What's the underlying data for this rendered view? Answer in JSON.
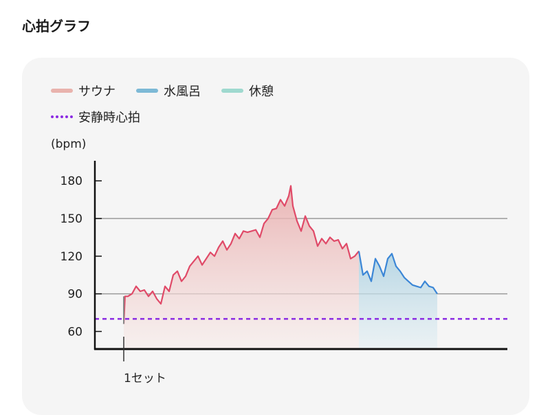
{
  "title": "心拍グラフ",
  "legend": {
    "sauna": "サウナ",
    "cold_bath": "水風呂",
    "rest": "休憩",
    "resting_hr": "安静時心拍"
  },
  "colors": {
    "sauna_line": "#e04a68",
    "sauna_fill": "#e8a9a9",
    "cold_line": "#3b86d6",
    "cold_fill": "#a9cfe0",
    "rest_swatch": "#9fd9cf",
    "sauna_swatch": "#e9b3ad",
    "cold_swatch": "#7db9d6",
    "resting_line": "#8a2be2",
    "grid": "#9a9a9a",
    "axis": "#111111"
  },
  "chart_data": {
    "type": "area",
    "ylabel": "(bpm)",
    "y_ticks": [
      60,
      90,
      120,
      150,
      180
    ],
    "ylim": [
      46,
      196
    ],
    "xlim": [
      0,
      100
    ],
    "gridlines_at": [
      90,
      150
    ],
    "resting_heart_rate": 70,
    "x_marker": {
      "x": 7,
      "label": "1セット"
    },
    "series": [
      {
        "name": "サウナ",
        "points": [
          [
            7,
            66
          ],
          [
            7.3,
            88
          ],
          [
            8,
            88
          ],
          [
            9,
            90
          ],
          [
            10,
            96
          ],
          [
            11,
            92
          ],
          [
            12,
            93
          ],
          [
            13,
            88
          ],
          [
            14,
            92
          ],
          [
            15,
            86
          ],
          [
            16,
            82
          ],
          [
            17,
            96
          ],
          [
            18,
            92
          ],
          [
            19,
            105
          ],
          [
            20,
            108
          ],
          [
            21,
            100
          ],
          [
            22,
            104
          ],
          [
            23,
            112
          ],
          [
            24,
            116
          ],
          [
            25,
            120
          ],
          [
            26,
            113
          ],
          [
            27,
            118
          ],
          [
            28,
            123
          ],
          [
            29,
            120
          ],
          [
            30,
            127
          ],
          [
            31,
            132
          ],
          [
            32,
            125
          ],
          [
            33,
            130
          ],
          [
            34,
            138
          ],
          [
            35,
            134
          ],
          [
            36,
            140
          ],
          [
            37,
            139
          ],
          [
            38,
            140
          ],
          [
            39,
            141
          ],
          [
            40,
            135
          ],
          [
            41,
            146
          ],
          [
            42,
            150
          ],
          [
            43,
            157
          ],
          [
            44,
            158
          ],
          [
            45,
            165
          ],
          [
            46,
            160
          ],
          [
            47,
            168
          ],
          [
            47.5,
            176
          ],
          [
            48,
            160
          ],
          [
            49,
            148
          ],
          [
            50,
            140
          ],
          [
            51,
            152
          ],
          [
            52,
            144
          ],
          [
            53,
            140
          ],
          [
            54,
            128
          ],
          [
            55,
            134
          ],
          [
            56,
            130
          ],
          [
            57,
            135
          ],
          [
            58,
            132
          ],
          [
            59,
            133
          ],
          [
            60,
            126
          ],
          [
            61,
            130
          ],
          [
            62,
            118
          ],
          [
            63,
            120
          ],
          [
            64,
            124
          ]
        ]
      },
      {
        "name": "水風呂",
        "points": [
          [
            64,
            124
          ],
          [
            65,
            105
          ],
          [
            66,
            108
          ],
          [
            67,
            100
          ],
          [
            68,
            118
          ],
          [
            69,
            112
          ],
          [
            70,
            104
          ],
          [
            71,
            118
          ],
          [
            72,
            122
          ],
          [
            73,
            112
          ],
          [
            74,
            108
          ],
          [
            75,
            103
          ],
          [
            76,
            100
          ],
          [
            77,
            97
          ],
          [
            78,
            96
          ],
          [
            79,
            95
          ],
          [
            80,
            100
          ],
          [
            81,
            96
          ],
          [
            82,
            95
          ],
          [
            83,
            90
          ]
        ]
      }
    ]
  }
}
